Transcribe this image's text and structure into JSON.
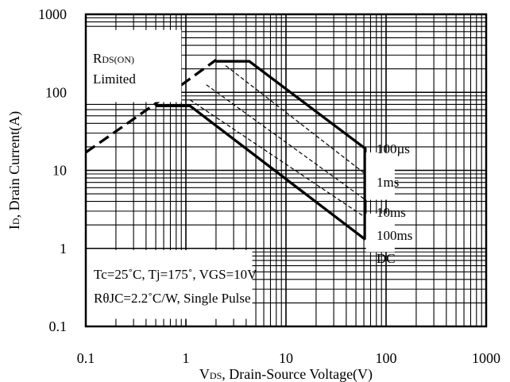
{
  "chart_data": {
    "type": "line",
    "xscale": "log",
    "yscale": "log",
    "xlim": [
      0.1,
      1000
    ],
    "ylim": [
      0.1,
      1000
    ],
    "grid": true,
    "xlabel_main": "V",
    "xlabel_sub": "DS",
    "xlabel_rest": ", Drain-Source Voltage(V)",
    "ylabel_main": "I",
    "ylabel_sub": "D",
    "ylabel_rest": ", Drain Current(A)",
    "xticks": [
      {
        "value": 0.1,
        "label": "0.1"
      },
      {
        "value": 1,
        "label": "1"
      },
      {
        "value": 10,
        "label": "10"
      },
      {
        "value": 100,
        "label": "100"
      },
      {
        "value": 1000,
        "label": "1000"
      }
    ],
    "yticks": [
      {
        "value": 0.1,
        "label": "0.1"
      },
      {
        "value": 1,
        "label": "1"
      },
      {
        "value": 10,
        "label": "10"
      },
      {
        "value": 100,
        "label": "100"
      },
      {
        "value": 1000,
        "label": "1000"
      }
    ],
    "series": [
      {
        "name": "RDS(ON) Limited",
        "style": "thick-dashed",
        "x": [
          0.1,
          0.5,
          2.0
        ],
        "y": [
          17,
          72,
          260
        ]
      },
      {
        "name": "100µs",
        "style": "thick",
        "x": [
          2.0,
          4.3,
          62,
          62
        ],
        "y": [
          250,
          250,
          19,
          1.3
        ]
      },
      {
        "name": "1ms",
        "style": "thin-dashed",
        "x": [
          2.5,
          62
        ],
        "y": [
          220,
          9
        ]
      },
      {
        "name": "10ms",
        "style": "thin-dashed",
        "x": [
          1.6,
          62
        ],
        "y": [
          125,
          4.2
        ]
      },
      {
        "name": "100ms",
        "style": "thin-dashed",
        "x": [
          1.1,
          62
        ],
        "y": [
          80,
          2.5
        ]
      },
      {
        "name": "DC",
        "style": "thick",
        "x": [
          0.5,
          1.1,
          62
        ],
        "y": [
          67,
          67,
          1.3
        ]
      }
    ],
    "curve_labels": [
      "100µs",
      "1ms",
      "10ms",
      "100ms",
      "DC"
    ],
    "annotations": {
      "rds_main": "R",
      "rds_sub": "DS(ON)",
      "rds_line2": "Limited",
      "cond1": "Tc=25˚C, Tj=175˚, VGS=10V",
      "cond2": "RθJC=2.2˚C/W, Single Pulse"
    }
  }
}
